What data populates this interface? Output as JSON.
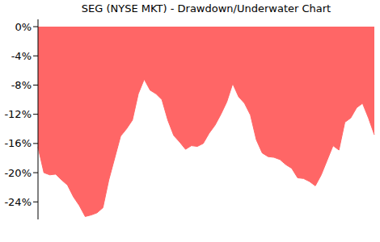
{
  "chart_data": {
    "type": "area",
    "title": "SEG (NYSE MKT) - Drawdown/Underwater Chart",
    "categories": [
      null,
      null,
      null,
      null,
      null,
      null,
      null,
      null,
      null,
      null,
      null,
      null,
      null,
      null,
      null,
      null,
      null,
      null,
      null,
      null,
      null,
      null,
      null,
      null,
      null,
      null,
      null,
      null,
      null,
      null,
      null,
      null,
      null,
      null,
      null,
      null,
      null,
      null,
      null,
      null,
      null,
      null,
      null,
      null,
      null,
      null,
      null,
      null,
      null,
      null,
      null,
      null,
      null,
      null,
      null,
      null,
      null,
      null
    ],
    "values": [
      -16.5,
      -20,
      -20.3,
      -20.2,
      -21,
      -21.7,
      -23.3,
      -24.5,
      -26,
      -25.8,
      -25.5,
      -24.8,
      -21,
      -18,
      -15,
      -14,
      -12.8,
      -9.2,
      -7.2,
      -8.7,
      -9.2,
      -10,
      -12.8,
      -14.9,
      -15.8,
      -16.8,
      -16.3,
      -16.4,
      -16,
      -14.6,
      -13.5,
      -12,
      -10.3,
      -7.8,
      -9.6,
      -10.5,
      -12.1,
      -15.5,
      -17.3,
      -17.8,
      -17.9,
      -18.2,
      -18.9,
      -19.4,
      -20.7,
      -20.8,
      -21.2,
      -21.8,
      -20.3,
      -18.3,
      -16.3,
      -16.9,
      -13.1,
      -12.5,
      -11.1,
      -10.5,
      -12.5,
      -14.8
    ],
    "color": "#ff6666",
    "ylim": [
      -26.4,
      1
    ],
    "yticks": [
      {
        "value": 0,
        "label": "0%"
      },
      {
        "value": -4,
        "label": "-4%"
      },
      {
        "value": -8,
        "label": "-8%"
      },
      {
        "value": -12,
        "label": "-12%"
      },
      {
        "value": -16,
        "label": "-16%"
      },
      {
        "value": -20,
        "label": "-20%"
      },
      {
        "value": -24,
        "label": "-24%"
      }
    ],
    "grid": false,
    "tick_labels": "y"
  }
}
